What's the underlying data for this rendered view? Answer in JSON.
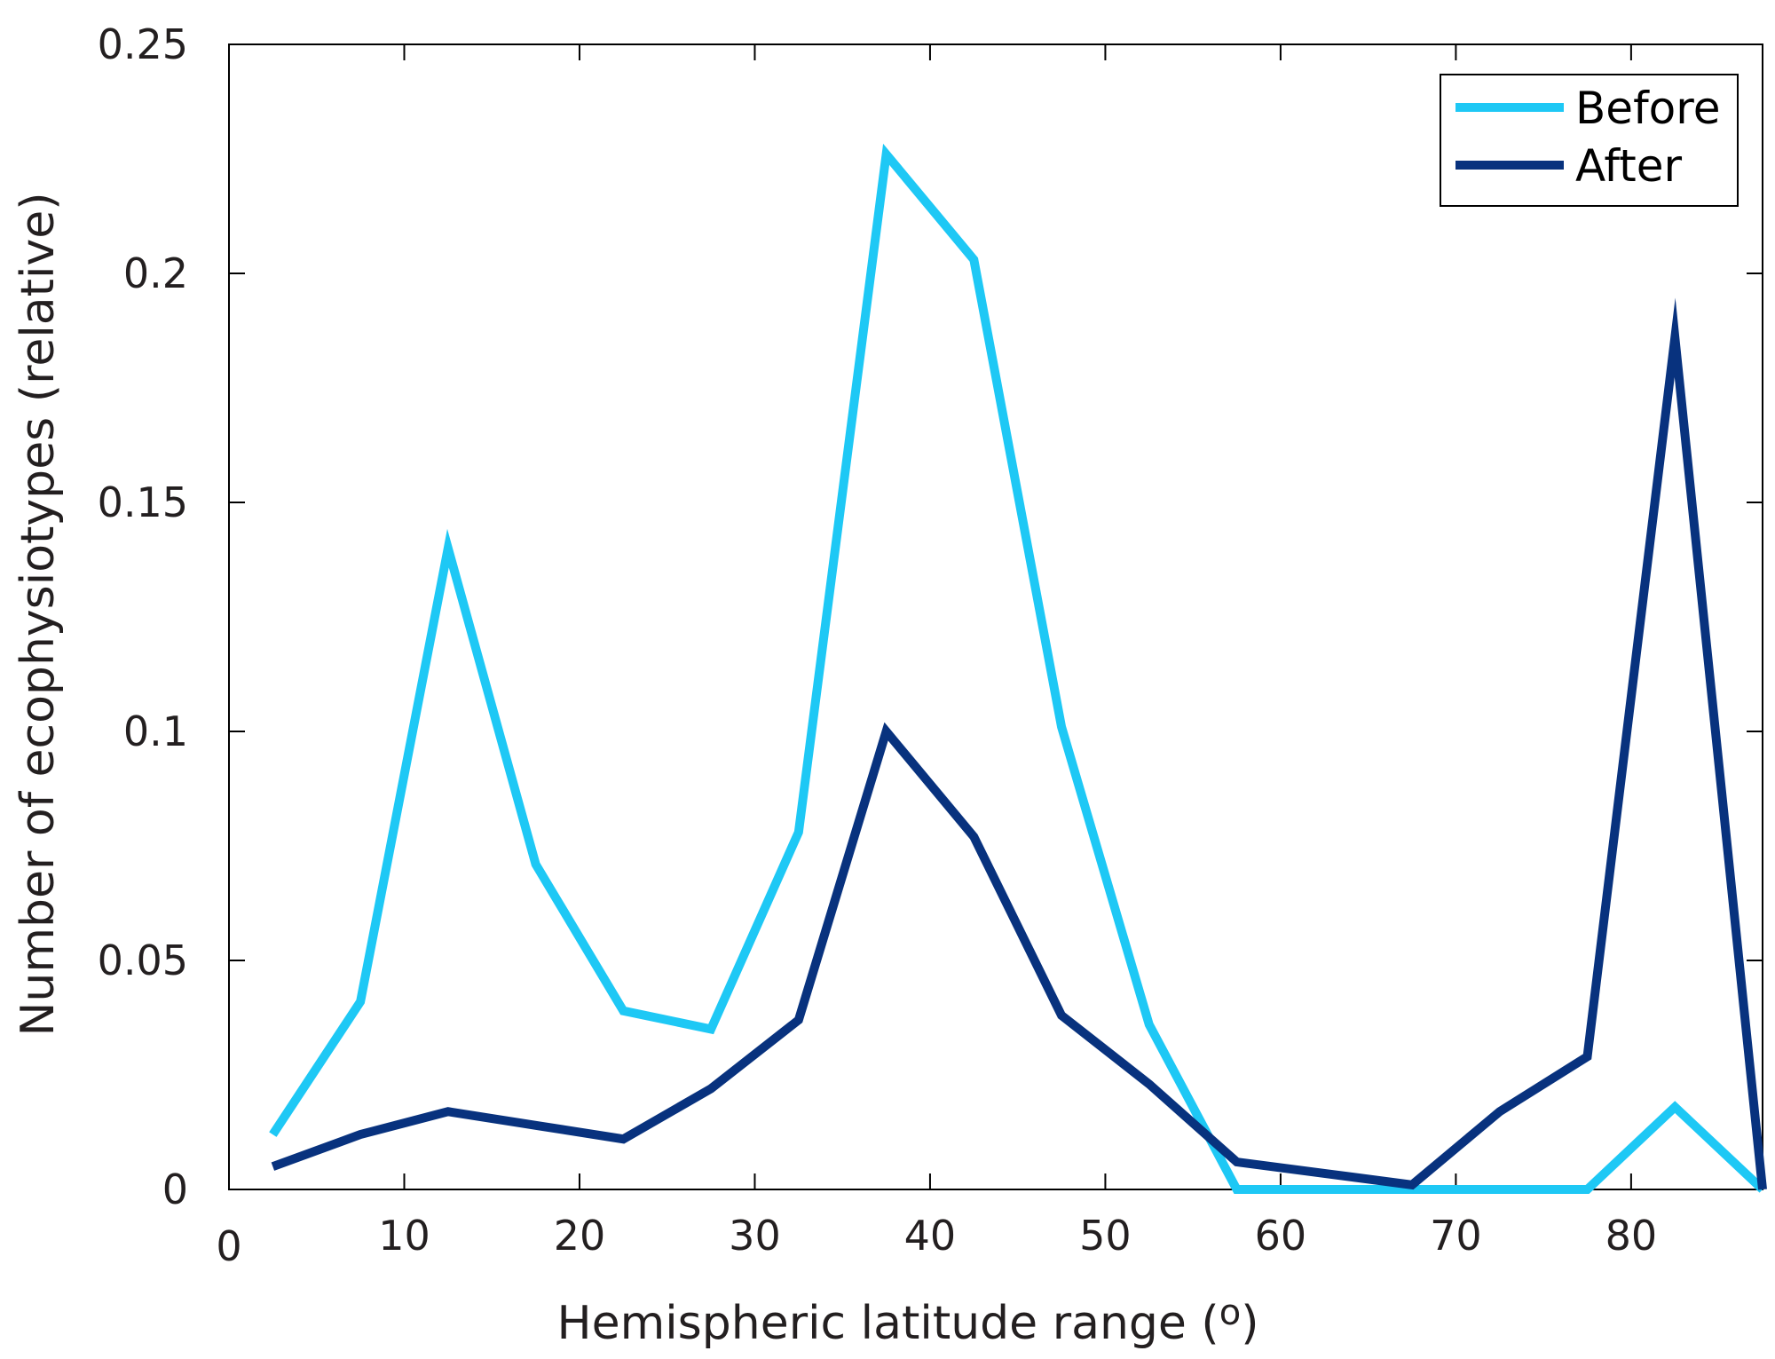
{
  "chart_data": {
    "type": "line",
    "xlabel": "Hemispheric latitude range (",
    "xlabel_unit": "o",
    "xlabel_close": ")",
    "ylabel": "Number of ecophysiotypes (relative)",
    "xlim": [
      0,
      87.5
    ],
    "ylim": [
      0,
      0.25
    ],
    "xticks": [
      {
        "value": 0,
        "label": "0"
      },
      {
        "value": 10,
        "label": "10"
      },
      {
        "value": 20,
        "label": "20"
      },
      {
        "value": 30,
        "label": "30"
      },
      {
        "value": 40,
        "label": "40"
      },
      {
        "value": 50,
        "label": "50"
      },
      {
        "value": 60,
        "label": "60"
      },
      {
        "value": 70,
        "label": "70"
      },
      {
        "value": 80,
        "label": "80"
      }
    ],
    "yticks": [
      {
        "value": 0,
        "label": "0"
      },
      {
        "value": 0.05,
        "label": "0.05"
      },
      {
        "value": 0.1,
        "label": "0.1"
      },
      {
        "value": 0.15,
        "label": "0.15"
      },
      {
        "value": 0.2,
        "label": "0.2"
      },
      {
        "value": 0.25,
        "label": "0.25"
      }
    ],
    "grid": false,
    "legend_position": "top-right",
    "x": [
      2.5,
      7.5,
      12.5,
      17.5,
      22.5,
      27.5,
      32.5,
      37.5,
      42.5,
      47.5,
      52.5,
      57.5,
      62.5,
      67.5,
      72.5,
      77.5,
      82.5,
      87.5
    ],
    "series": [
      {
        "name": "Before",
        "color": "#1ec8f5",
        "values": [
          0.012,
          0.041,
          0.14,
          0.071,
          0.039,
          0.035,
          0.078,
          0.226,
          0.203,
          0.101,
          0.036,
          0.0,
          0.0,
          0.0,
          0.0,
          0.0,
          0.018,
          0.0
        ]
      },
      {
        "name": "After",
        "color": "#08327e",
        "values": [
          0.005,
          0.012,
          0.017,
          0.014,
          0.011,
          0.022,
          0.037,
          0.1,
          0.077,
          0.038,
          0.023,
          0.006,
          0.0035,
          0.001,
          0.017,
          0.029,
          0.186,
          0.0
        ]
      }
    ]
  }
}
